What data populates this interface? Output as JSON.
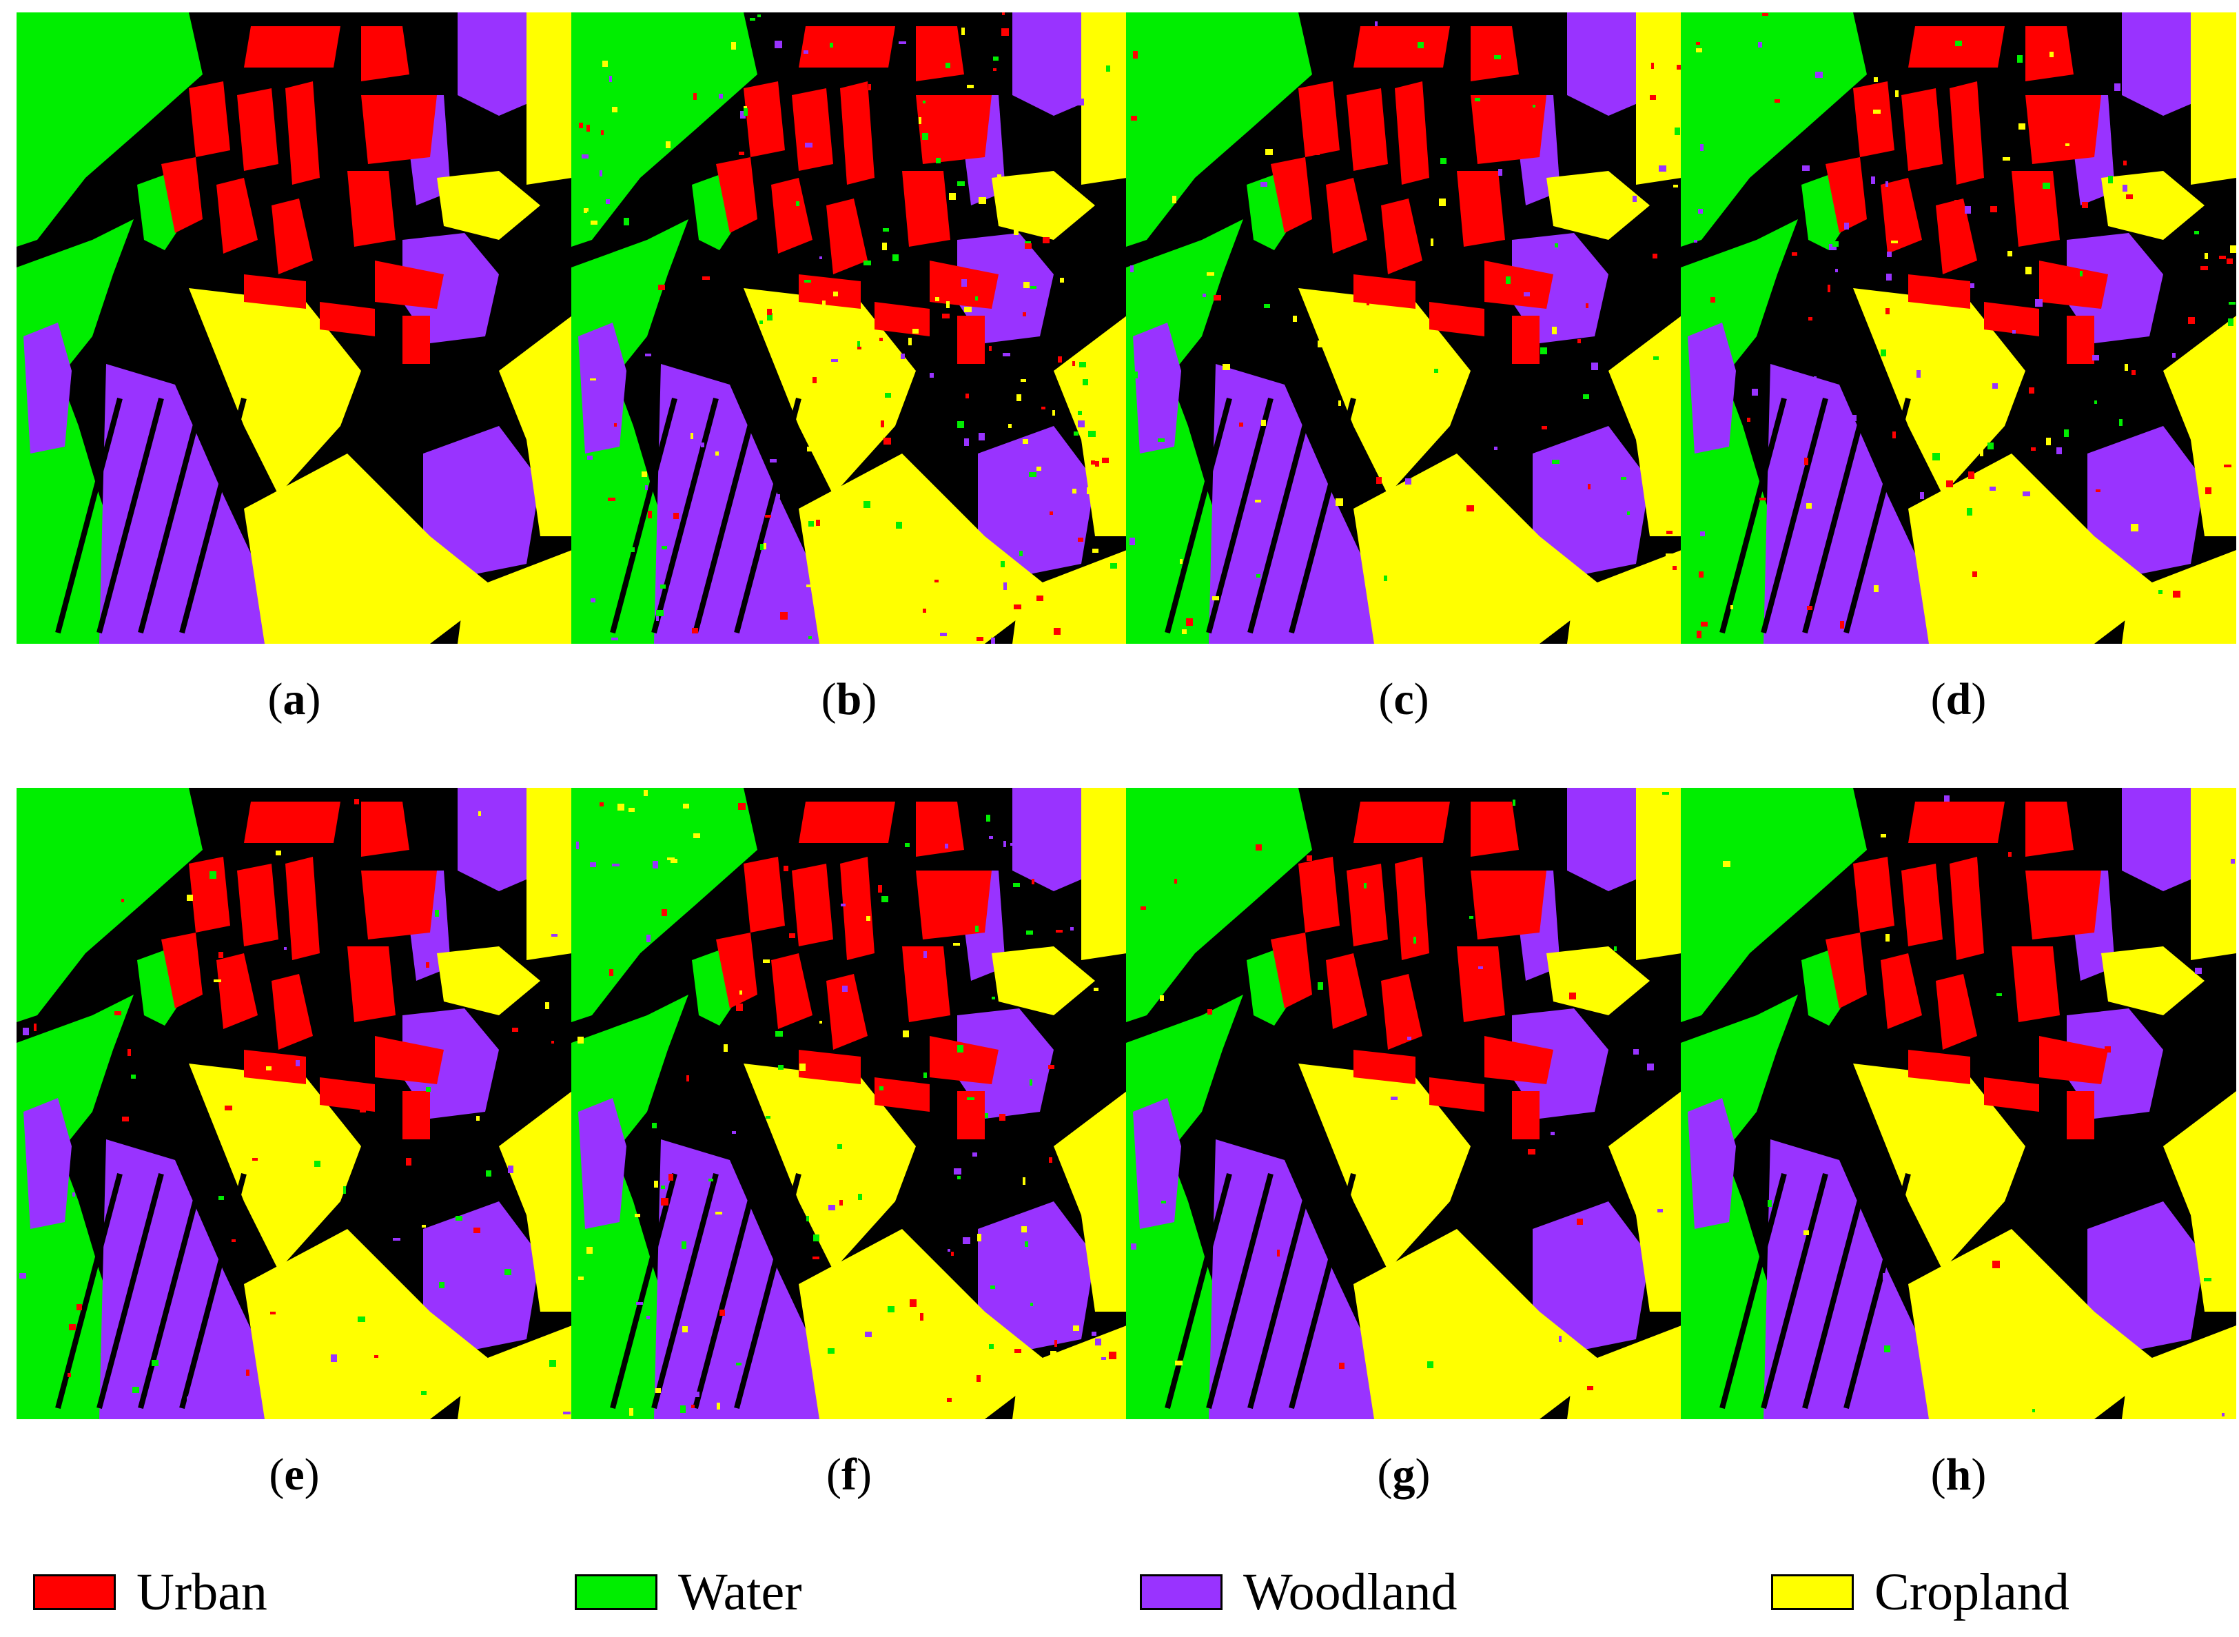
{
  "classes": [
    {
      "name": "Urban",
      "color": "#ff0000"
    },
    {
      "name": "Water",
      "color": "#00ee00"
    },
    {
      "name": "Woodland",
      "color": "#9933ff"
    },
    {
      "name": "Cropland",
      "color": "#ffff00"
    }
  ],
  "background_color": "#000000",
  "panels": [
    {
      "letter": "a",
      "noise": 0
    },
    {
      "letter": "b",
      "noise": 0.85
    },
    {
      "letter": "c",
      "noise": 0.35
    },
    {
      "letter": "d",
      "noise": 0.55
    },
    {
      "letter": "e",
      "noise": 0.3
    },
    {
      "letter": "f",
      "noise": 0.6
    },
    {
      "letter": "g",
      "noise": 0.15
    },
    {
      "letter": "h",
      "noise": 0.08
    }
  ],
  "legend": {
    "urban": "Urban",
    "water": "Water",
    "woodland": "Woodland",
    "cropland": "Cropland"
  }
}
